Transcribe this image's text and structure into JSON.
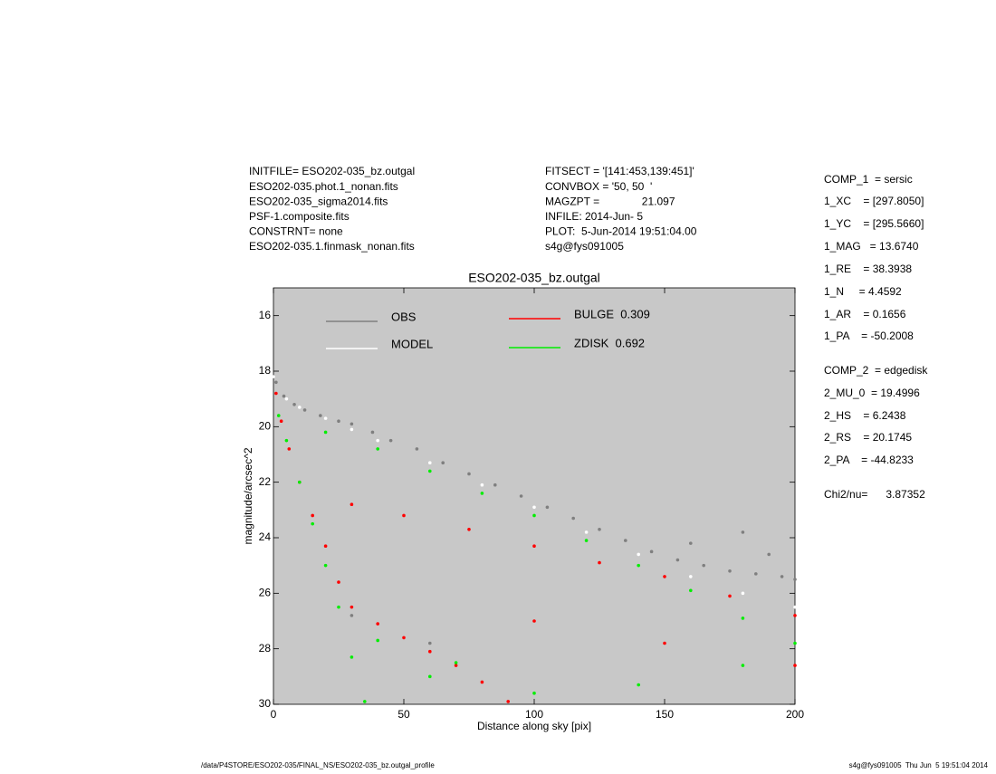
{
  "header_left": [
    "INITFILE= ESO202-035_bz.outgal",
    "ESO202-035.phot.1_nonan.fits",
    "ESO202-035_sigma2014.fits",
    "PSF-1.composite.fits",
    "CONSTRNT= none",
    "ESO202-035.1.finmask_nonan.fits"
  ],
  "header_mid": [
    "FITSECT = '[141:453,139:451]'",
    "CONVBOX = '50, 50  '",
    "MAGZPT =              21.097",
    "INFILE: 2014-Jun- 5",
    "PLOT:  5-Jun-2014 19:51:04.00",
    "s4g@fys091005"
  ],
  "params": [
    "COMP_1  = sersic",
    "1_XC    = [297.8050]",
    "1_YC    = [295.5660]",
    "1_MAG   = 13.6740",
    "1_RE    = 38.3938",
    "1_N     = 4.4592",
    "1_AR    = 0.1656",
    "1_PA    = -50.2008",
    "COMP_2  = edgedisk",
    "2_MU_0  = 19.4996",
    "2_HS    = 6.2438",
    "2_RS    = 20.1745",
    "2_PA    = -44.8233",
    "Chi2/nu=      3.87352"
  ],
  "footer_left": "/data/P4STORE/ESO202-035/FINAL_NS/ESO202-035_bz.outgal_profile",
  "footer_right": "s4g@fys091005  Thu Jun  5 19:51:04 2014",
  "chart_data": {
    "type": "scatter",
    "title": "ESO202-035_bz.outgal",
    "x_label": "Distance along sky [pix]",
    "y_label": "magnitude/arcsec^2",
    "xlim": [
      0,
      200
    ],
    "ylim": [
      30,
      15
    ],
    "xticks": [
      0,
      50,
      100,
      150,
      200
    ],
    "yticks": [
      16,
      18,
      20,
      22,
      24,
      26,
      28,
      30
    ],
    "series": [
      {
        "name": "OBS",
        "color": "#7f7f7f",
        "x": [
          1,
          4,
          8,
          12,
          18,
          25,
          30,
          38,
          45,
          55,
          65,
          75,
          85,
          95,
          105,
          115,
          125,
          135,
          145,
          155,
          165,
          175,
          185,
          195,
          200,
          30,
          60,
          160,
          180,
          190
        ],
        "y": [
          18.4,
          18.9,
          19.2,
          19.4,
          19.6,
          19.8,
          19.9,
          20.2,
          20.5,
          20.8,
          21.3,
          21.7,
          22.1,
          22.5,
          22.9,
          23.3,
          23.7,
          24.1,
          24.5,
          24.8,
          25.0,
          25.2,
          25.3,
          25.4,
          25.5,
          26.8,
          27.8,
          24.2,
          23.8,
          24.6
        ]
      },
      {
        "name": "MODEL",
        "color": "#ffffff",
        "x": [
          0,
          5,
          10,
          20,
          30,
          40,
          60,
          80,
          100,
          120,
          140,
          160,
          180,
          200
        ],
        "y": [
          18.2,
          19.0,
          19.3,
          19.7,
          20.1,
          20.5,
          21.3,
          22.1,
          22.9,
          23.8,
          24.6,
          25.4,
          26.0,
          26.5
        ]
      },
      {
        "name": "BULGE  0.309",
        "color": "#ff0000",
        "x": [
          1,
          3,
          6,
          10,
          15,
          20,
          25,
          30,
          40,
          50,
          60,
          70,
          80,
          90,
          30,
          50,
          75,
          100,
          125,
          150,
          175,
          200,
          100,
          150,
          200
        ],
        "y": [
          18.8,
          19.8,
          20.8,
          22.0,
          23.2,
          24.3,
          25.6,
          26.5,
          27.1,
          27.6,
          28.1,
          28.6,
          29.2,
          29.9,
          22.8,
          23.2,
          23.7,
          24.3,
          24.9,
          25.4,
          26.1,
          26.8,
          27.0,
          27.8,
          28.6
        ]
      },
      {
        "name": "ZDISK  0.692",
        "color": "#00ee00",
        "x": [
          2,
          5,
          10,
          15,
          20,
          25,
          30,
          35,
          20,
          40,
          60,
          80,
          100,
          120,
          140,
          160,
          180,
          200,
          60,
          100,
          140,
          180,
          40,
          70
        ],
        "y": [
          19.6,
          20.5,
          22.0,
          23.5,
          25.0,
          26.5,
          28.3,
          29.9,
          20.2,
          20.8,
          21.6,
          22.4,
          23.2,
          24.1,
          25.0,
          25.9,
          26.9,
          27.8,
          29.0,
          29.6,
          29.3,
          28.6,
          27.7,
          28.5
        ]
      }
    ]
  }
}
